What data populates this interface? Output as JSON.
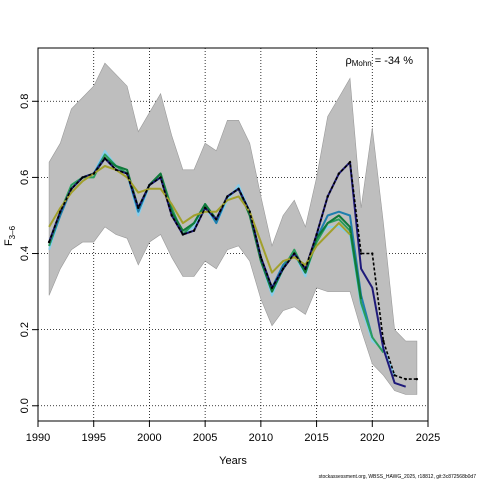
{
  "chart_data": {
    "type": "line",
    "xlabel": "Years",
    "ylabel_main": "F",
    "ylabel_sub": "3–6",
    "xlim": [
      1990,
      2025
    ],
    "ylim": [
      -0.04,
      0.94
    ],
    "xticks": [
      1990,
      1995,
      2000,
      2005,
      2010,
      2015,
      2020,
      2025
    ],
    "yticks": [
      0.0,
      0.2,
      0.4,
      0.6,
      0.8
    ],
    "ytick_labels": [
      "0.0",
      "0.2",
      "0.4",
      "0.6",
      "0.8"
    ],
    "grid": true,
    "annotation": {
      "rho": "ρ",
      "sub": "Mohn",
      "value": " = -34 %"
    },
    "credit": "stockassessment.org, WBSS_HAWG_2025, r18812, git:3c872568b0d7",
    "colors": {
      "band": "#bebebe",
      "band_edge": "#9a9a9a",
      "main_line": "#000000"
    },
    "band": {
      "x": [
        1991,
        1992,
        1993,
        1994,
        1995,
        1996,
        1997,
        1998,
        1999,
        2000,
        2001,
        2002,
        2003,
        2004,
        2005,
        2006,
        2007,
        2008,
        2009,
        2010,
        2011,
        2012,
        2013,
        2014,
        2015,
        2016,
        2017,
        2018,
        2019,
        2020,
        2021,
        2022,
        2023,
        2024
      ],
      "upper": [
        0.64,
        0.69,
        0.78,
        0.81,
        0.84,
        0.9,
        0.87,
        0.84,
        0.72,
        0.77,
        0.82,
        0.71,
        0.62,
        0.62,
        0.69,
        0.67,
        0.75,
        0.75,
        0.69,
        0.55,
        0.42,
        0.5,
        0.54,
        0.47,
        0.6,
        0.76,
        0.81,
        0.86,
        0.52,
        0.73,
        0.48,
        0.2,
        0.17,
        0.17
      ],
      "lower": [
        0.29,
        0.36,
        0.41,
        0.43,
        0.43,
        0.47,
        0.45,
        0.44,
        0.37,
        0.43,
        0.45,
        0.39,
        0.34,
        0.34,
        0.38,
        0.36,
        0.41,
        0.42,
        0.38,
        0.28,
        0.21,
        0.25,
        0.26,
        0.24,
        0.31,
        0.3,
        0.3,
        0.3,
        0.2,
        0.11,
        0.08,
        0.04,
        0.03,
        0.03
      ]
    },
    "series": [
      {
        "color": "#87ceeb",
        "x": [
          1991,
          1992,
          1993,
          1994,
          1995,
          1996,
          1997,
          1998,
          1999,
          2000,
          2001,
          2002,
          2003,
          2004,
          2005,
          2006,
          2007,
          2008,
          2009,
          2010,
          2011,
          2012,
          2013,
          2014,
          2015,
          2016,
          2017,
          2018,
          2019,
          2020,
          2021,
          2022
        ],
        "y": [
          0.41,
          0.5,
          0.58,
          0.6,
          0.61,
          0.67,
          0.63,
          0.61,
          0.5,
          0.58,
          0.6,
          0.52,
          0.45,
          0.47,
          0.52,
          0.48,
          0.54,
          0.58,
          0.51,
          0.38,
          0.29,
          0.36,
          0.4,
          0.34,
          0.44,
          0.47,
          0.47,
          0.45,
          0.26,
          0.17,
          0.15,
          0.08
        ]
      },
      {
        "color": "#1e7fae",
        "x": [
          1991,
          1992,
          1993,
          1994,
          1995,
          1996,
          1997,
          1998,
          1999,
          2000,
          2001,
          2002,
          2003,
          2004,
          2005,
          2006,
          2007,
          2008,
          2009,
          2010,
          2011,
          2012,
          2013,
          2014,
          2015,
          2016,
          2017,
          2018,
          2019,
          2020
        ],
        "y": [
          0.42,
          0.5,
          0.57,
          0.6,
          0.61,
          0.66,
          0.63,
          0.61,
          0.51,
          0.58,
          0.6,
          0.51,
          0.45,
          0.48,
          0.53,
          0.48,
          0.55,
          0.57,
          0.51,
          0.39,
          0.31,
          0.37,
          0.4,
          0.35,
          0.44,
          0.5,
          0.51,
          0.5,
          0.29,
          0.18
        ]
      },
      {
        "color": "#2a9d5c",
        "x": [
          1991,
          1992,
          1993,
          1994,
          1995,
          1996,
          1997,
          1998,
          1999,
          2000,
          2001,
          2002,
          2003,
          2004,
          2005,
          2006,
          2007,
          2008,
          2009,
          2010,
          2011,
          2012,
          2013,
          2014,
          2015,
          2016,
          2017,
          2018,
          2019,
          2020,
          2021
        ],
        "y": [
          0.42,
          0.51,
          0.58,
          0.6,
          0.6,
          0.66,
          0.63,
          0.61,
          0.52,
          0.58,
          0.61,
          0.52,
          0.45,
          0.48,
          0.53,
          0.49,
          0.55,
          0.57,
          0.51,
          0.39,
          0.3,
          0.36,
          0.41,
          0.35,
          0.43,
          0.48,
          0.49,
          0.46,
          0.27,
          0.18,
          0.14
        ]
      },
      {
        "color": "#0f7a3a",
        "x": [
          1991,
          1992,
          1993,
          1994,
          1995,
          1996,
          1997,
          1998,
          1999,
          2000,
          2001,
          2002,
          2003,
          2004,
          2005,
          2006,
          2007,
          2008,
          2009,
          2010,
          2011,
          2012,
          2013,
          2014,
          2015,
          2016,
          2017,
          2018,
          2019
        ],
        "y": [
          0.43,
          0.51,
          0.57,
          0.6,
          0.61,
          0.65,
          0.63,
          0.62,
          0.52,
          0.58,
          0.61,
          0.51,
          0.46,
          0.48,
          0.53,
          0.49,
          0.55,
          0.57,
          0.5,
          0.38,
          0.3,
          0.36,
          0.4,
          0.35,
          0.44,
          0.48,
          0.5,
          0.47,
          0.28
        ]
      },
      {
        "color": "#1f1a7a",
        "x": [
          1991,
          1992,
          1993,
          1994,
          1995,
          1996,
          1997,
          1998,
          1999,
          2000,
          2001,
          2002,
          2003,
          2004,
          2005,
          2006,
          2007,
          2008,
          2009,
          2010,
          2011,
          2012,
          2013,
          2014,
          2015,
          2016,
          2017,
          2018,
          2019,
          2020,
          2021,
          2022,
          2023
        ],
        "y": [
          0.43,
          0.51,
          0.57,
          0.6,
          0.61,
          0.65,
          0.62,
          0.61,
          0.52,
          0.58,
          0.6,
          0.5,
          0.45,
          0.46,
          0.52,
          0.49,
          0.55,
          0.57,
          0.51,
          0.39,
          0.31,
          0.36,
          0.4,
          0.36,
          0.45,
          0.55,
          0.61,
          0.64,
          0.36,
          0.31,
          0.15,
          0.06,
          0.05
        ]
      },
      {
        "color": "#a2a02c",
        "x": [
          1991,
          1992,
          1993,
          1994,
          1995,
          1996,
          1997,
          1998,
          1999,
          2000,
          2001,
          2002,
          2003,
          2004,
          2005,
          2006,
          2007,
          2008,
          2009,
          2010,
          2011,
          2012,
          2013,
          2014,
          2015,
          2016,
          2017,
          2018
        ],
        "y": [
          0.47,
          0.52,
          0.56,
          0.59,
          0.61,
          0.63,
          0.62,
          0.6,
          0.56,
          0.57,
          0.57,
          0.53,
          0.48,
          0.5,
          0.51,
          0.51,
          0.54,
          0.55,
          0.51,
          0.43,
          0.35,
          0.38,
          0.39,
          0.37,
          0.42,
          0.45,
          0.48,
          0.45
        ]
      },
      {
        "color": "#000000",
        "main": true,
        "x": [
          1991,
          1992,
          1993,
          1994,
          1995,
          1996,
          1997,
          1998,
          1999,
          2000,
          2001,
          2002,
          2003,
          2004,
          2005,
          2006,
          2007,
          2008,
          2009,
          2010,
          2011,
          2012,
          2013,
          2014,
          2015,
          2016,
          2017,
          2018,
          2019,
          2020,
          2021,
          2022,
          2023,
          2024
        ],
        "y": [
          0.43,
          0.51,
          0.57,
          0.6,
          0.61,
          0.65,
          0.62,
          0.61,
          0.52,
          0.58,
          0.6,
          0.5,
          0.45,
          0.46,
          0.52,
          0.49,
          0.55,
          0.57,
          0.51,
          0.39,
          0.31,
          0.36,
          0.4,
          0.36,
          0.45,
          0.55,
          0.61,
          0.64,
          0.4,
          0.4,
          0.17,
          0.08,
          0.07,
          0.07
        ]
      }
    ]
  }
}
